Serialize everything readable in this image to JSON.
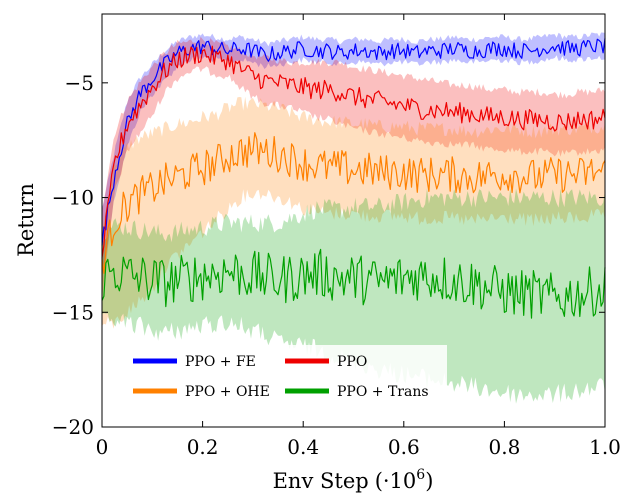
{
  "chart_data": {
    "type": "line",
    "title": "",
    "xlabel": "Env Step",
    "xlabel_unit": "(·10",
    "xlabel_exp": "6",
    "xlabel_close": ")",
    "ylabel": "Return",
    "xlim": [
      0,
      1.0
    ],
    "ylim": [
      -20,
      -2
    ],
    "xticks": [
      0,
      0.2,
      0.4,
      0.6,
      0.8,
      1.0
    ],
    "xtick_labels": [
      "0",
      "0.2",
      "0.4",
      "0.6",
      "0.8",
      "1.0"
    ],
    "yticks": [
      -20,
      -15,
      -10,
      -5
    ],
    "ytick_labels": [
      "−20",
      "−15",
      "−10",
      "−5"
    ],
    "grid": false,
    "legend_position": "bottom-left",
    "x": [
      0,
      0.025,
      0.05,
      0.075,
      0.1,
      0.125,
      0.15,
      0.175,
      0.2,
      0.225,
      0.25,
      0.275,
      0.3,
      0.325,
      0.35,
      0.375,
      0.4,
      0.425,
      0.45,
      0.475,
      0.5,
      0.525,
      0.55,
      0.575,
      0.6,
      0.625,
      0.65,
      0.675,
      0.7,
      0.725,
      0.75,
      0.775,
      0.8,
      0.825,
      0.85,
      0.875,
      0.9,
      0.925,
      0.95,
      0.975,
      1.0
    ],
    "series": [
      {
        "name": "PPO + FE",
        "color": "#0000ff",
        "noise": 0.35,
        "values": [
          -12.0,
          -9.0,
          -6.8,
          -5.5,
          -4.8,
          -4.2,
          -3.7,
          -3.5,
          -3.4,
          -3.5,
          -3.6,
          -3.5,
          -3.6,
          -3.8,
          -3.7,
          -3.6,
          -3.5,
          -3.6,
          -3.6,
          -3.7,
          -3.6,
          -3.6,
          -3.7,
          -3.6,
          -3.6,
          -3.7,
          -3.6,
          -3.6,
          -3.5,
          -3.6,
          -3.6,
          -3.5,
          -3.5,
          -3.6,
          -3.6,
          -3.5,
          -3.4,
          -3.5,
          -3.5,
          -3.4,
          -3.4
        ],
        "band_lo": [
          -13.5,
          -10.0,
          -7.8,
          -6.3,
          -5.5,
          -4.9,
          -4.3,
          -4.0,
          -3.9,
          -4.0,
          -4.1,
          -4.0,
          -4.1,
          -4.3,
          -4.2,
          -4.1,
          -4.0,
          -4.1,
          -4.1,
          -4.2,
          -4.1,
          -4.1,
          -4.2,
          -4.1,
          -4.1,
          -4.2,
          -4.1,
          -4.1,
          -4.0,
          -4.1,
          -4.1,
          -4.0,
          -4.0,
          -4.1,
          -4.1,
          -4.0,
          -3.9,
          -4.0,
          -4.0,
          -3.9,
          -3.9
        ],
        "band_hi": [
          -10.5,
          -8.0,
          -5.8,
          -4.8,
          -4.2,
          -3.6,
          -3.2,
          -3.0,
          -2.9,
          -3.0,
          -3.1,
          -3.0,
          -3.1,
          -3.3,
          -3.2,
          -3.1,
          -3.0,
          -3.1,
          -3.1,
          -3.2,
          -3.1,
          -3.1,
          -3.2,
          -3.1,
          -3.1,
          -3.2,
          -3.1,
          -3.1,
          -3.0,
          -3.1,
          -3.1,
          -3.0,
          -3.0,
          -3.1,
          -3.1,
          -3.0,
          -2.9,
          -3.0,
          -3.0,
          -2.9,
          -2.9
        ]
      },
      {
        "name": "PPO",
        "color": "#ee0000",
        "noise": 0.45,
        "values": [
          -12.5,
          -8.5,
          -6.8,
          -6.0,
          -5.2,
          -4.5,
          -4.0,
          -3.8,
          -3.7,
          -3.9,
          -4.0,
          -4.4,
          -4.7,
          -4.9,
          -5.0,
          -5.1,
          -5.2,
          -5.3,
          -5.3,
          -5.4,
          -5.6,
          -5.7,
          -5.8,
          -5.9,
          -6.0,
          -6.1,
          -6.2,
          -6.2,
          -6.3,
          -6.3,
          -6.4,
          -6.5,
          -6.5,
          -6.6,
          -6.6,
          -6.6,
          -6.7,
          -6.7,
          -6.6,
          -6.6,
          -6.5
        ],
        "band_lo": [
          -14.5,
          -9.8,
          -8.0,
          -7.2,
          -6.4,
          -5.4,
          -4.8,
          -4.5,
          -4.4,
          -4.6,
          -4.7,
          -5.2,
          -5.6,
          -5.9,
          -6.0,
          -6.1,
          -6.3,
          -6.5,
          -6.6,
          -6.8,
          -7.0,
          -7.1,
          -7.2,
          -7.3,
          -7.4,
          -7.5,
          -7.6,
          -7.6,
          -7.7,
          -7.7,
          -7.8,
          -7.9,
          -7.9,
          -8.0,
          -8.0,
          -8.0,
          -8.1,
          -8.1,
          -8.0,
          -8.0,
          -7.9
        ],
        "band_hi": [
          -10.5,
          -7.2,
          -5.8,
          -5.0,
          -4.3,
          -3.7,
          -3.3,
          -3.2,
          -3.1,
          -3.3,
          -3.4,
          -3.6,
          -3.8,
          -3.9,
          -4.0,
          -4.1,
          -4.1,
          -4.1,
          -4.1,
          -4.1,
          -4.3,
          -4.4,
          -4.5,
          -4.6,
          -4.7,
          -4.8,
          -4.9,
          -5.0,
          -5.1,
          -5.1,
          -5.2,
          -5.3,
          -5.3,
          -5.4,
          -5.4,
          -5.4,
          -5.5,
          -5.5,
          -5.4,
          -5.4,
          -5.3
        ]
      },
      {
        "name": "PPO + OHE",
        "color": "#ff8000",
        "noise": 0.8,
        "values": [
          -12.8,
          -11.0,
          -10.3,
          -9.9,
          -9.6,
          -9.3,
          -9.1,
          -8.9,
          -8.7,
          -8.5,
          -8.2,
          -8.0,
          -7.9,
          -8.0,
          -8.1,
          -8.3,
          -8.5,
          -8.6,
          -8.7,
          -8.7,
          -8.8,
          -8.8,
          -8.9,
          -8.9,
          -8.9,
          -9.0,
          -9.0,
          -9.0,
          -9.0,
          -9.1,
          -9.1,
          -9.0,
          -9.0,
          -9.0,
          -9.1,
          -9.1,
          -9.0,
          -9.0,
          -9.0,
          -8.9,
          -8.9
        ],
        "band_lo": [
          -15.5,
          -15.5,
          -15.0,
          -14.5,
          -14.0,
          -13.0,
          -12.5,
          -12.0,
          -11.5,
          -11.0,
          -10.5,
          -10.0,
          -9.8,
          -9.8,
          -10.0,
          -10.2,
          -10.5,
          -10.6,
          -10.7,
          -10.7,
          -10.7,
          -10.8,
          -10.8,
          -10.8,
          -10.8,
          -10.9,
          -10.9,
          -10.9,
          -10.9,
          -11.0,
          -11.0,
          -10.9,
          -10.9,
          -10.9,
          -11.0,
          -11.0,
          -10.9,
          -10.9,
          -10.9,
          -10.8,
          -10.8
        ],
        "band_hi": [
          -11.5,
          -8.5,
          -7.8,
          -7.4,
          -7.2,
          -7.0,
          -6.8,
          -6.7,
          -6.5,
          -6.4,
          -6.1,
          -5.9,
          -5.9,
          -6.0,
          -6.1,
          -6.3,
          -6.5,
          -6.6,
          -6.7,
          -6.7,
          -6.8,
          -6.8,
          -6.9,
          -6.9,
          -6.9,
          -7.0,
          -7.0,
          -7.0,
          -7.0,
          -7.1,
          -7.1,
          -7.0,
          -7.0,
          -7.0,
          -7.1,
          -7.1,
          -7.0,
          -7.0,
          -7.0,
          -6.9,
          -6.9
        ]
      },
      {
        "name": "PPO + Trans",
        "color": "#00a000",
        "noise": 1.1,
        "values": [
          -13.5,
          -13.2,
          -13.4,
          -13.5,
          -13.6,
          -13.7,
          -13.6,
          -13.5,
          -13.4,
          -13.3,
          -13.2,
          -13.3,
          -13.4,
          -13.5,
          -13.6,
          -13.5,
          -13.4,
          -13.3,
          -13.4,
          -13.5,
          -13.5,
          -13.6,
          -13.7,
          -13.6,
          -13.5,
          -13.4,
          -13.4,
          -13.5,
          -13.6,
          -13.7,
          -13.8,
          -14.0,
          -14.1,
          -14.2,
          -14.2,
          -14.3,
          -14.4,
          -14.3,
          -14.2,
          -14.1,
          -14.0
        ],
        "band_lo": [
          -15.5,
          -15.3,
          -15.5,
          -15.6,
          -15.8,
          -15.9,
          -15.8,
          -15.7,
          -15.6,
          -15.5,
          -15.4,
          -15.6,
          -15.8,
          -16.0,
          -16.3,
          -16.4,
          -16.5,
          -16.6,
          -16.8,
          -17.0,
          -17.1,
          -17.3,
          -17.5,
          -17.6,
          -17.7,
          -17.8,
          -17.9,
          -18.0,
          -18.1,
          -18.2,
          -18.3,
          -18.4,
          -18.5,
          -18.6,
          -18.6,
          -18.6,
          -18.6,
          -18.5,
          -18.4,
          -18.3,
          -18.2
        ],
        "band_hi": [
          -11.5,
          -11.2,
          -11.3,
          -11.4,
          -11.5,
          -11.6,
          -11.5,
          -11.4,
          -11.3,
          -11.2,
          -11.1,
          -11.1,
          -11.1,
          -11.1,
          -11.1,
          -10.9,
          -10.7,
          -10.5,
          -10.5,
          -10.5,
          -10.4,
          -10.4,
          -10.4,
          -10.3,
          -10.2,
          -10.1,
          -10.0,
          -10.0,
          -10.0,
          -10.0,
          -10.0,
          -10.0,
          -10.0,
          -10.0,
          -10.0,
          -10.0,
          -10.0,
          -10.0,
          -10.0,
          -10.0,
          -10.0
        ]
      }
    ]
  }
}
